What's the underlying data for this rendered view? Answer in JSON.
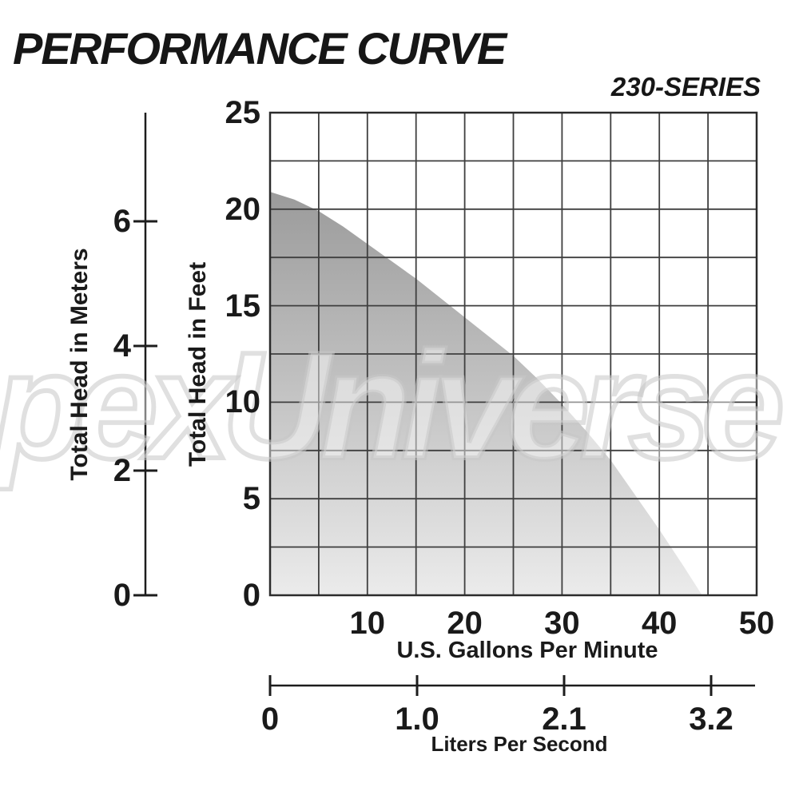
{
  "title": "PERFORMANCE CURVE",
  "series_label": "230-SERIES",
  "watermark": "pexUniverse",
  "colors": {
    "text": "#1a1a1a",
    "grid": "#3f3f3f",
    "border": "#2b2b2b",
    "axis": "#1d1d1d",
    "fill_top": "#9b9b9b",
    "fill_bottom": "#ebebeb",
    "watermark_stroke": "#c6c6c6"
  },
  "chart_data": {
    "type": "area",
    "title": "PERFORMANCE CURVE",
    "series_name": "230-SERIES",
    "grid": true,
    "x_axis": {
      "label": "U.S. Gallons Per Minute",
      "range": [
        0,
        50
      ],
      "tick_step": 10,
      "gridline_step": 5,
      "ticks": [
        10,
        20,
        30,
        40,
        50
      ]
    },
    "x_axis_secondary": {
      "label": "Liters Per Second",
      "ticks": [
        "0",
        "1.0",
        "2.1",
        "3.2"
      ]
    },
    "y_axis": {
      "label": "Total Head in Feet",
      "range": [
        0,
        25
      ],
      "tick_step": 5,
      "gridline_step": 2.5,
      "ticks": [
        25,
        20,
        15,
        10,
        5,
        0
      ]
    },
    "y_axis_secondary": {
      "label": "Total Head in Meters",
      "range": [
        0,
        7.7
      ],
      "ticks": [
        6,
        4,
        2,
        0
      ]
    },
    "curve": {
      "name": "pump performance curve (head vs flow)",
      "units": [
        "US GPM",
        "feet of head"
      ],
      "points": [
        [
          0,
          20.9
        ],
        [
          2.5,
          20.5
        ],
        [
          5,
          19.9
        ],
        [
          7.5,
          19.1
        ],
        [
          10,
          18.2
        ],
        [
          12.5,
          17.3
        ],
        [
          15,
          16.4
        ],
        [
          17.5,
          15.4
        ],
        [
          20,
          14.4
        ],
        [
          22.5,
          13.4
        ],
        [
          25,
          12.4
        ],
        [
          27.5,
          11.2
        ],
        [
          30,
          9.9
        ],
        [
          32.5,
          8.5
        ],
        [
          35,
          7.0
        ],
        [
          37.5,
          5.2
        ],
        [
          40,
          3.4
        ],
        [
          42.5,
          1.5
        ],
        [
          44.4,
          0
        ]
      ],
      "shutoff_head_ft": 20.9,
      "max_flow_gpm": 44.4
    },
    "fill_gradient": {
      "top": "#9b9b9b",
      "bottom": "#ebebeb"
    },
    "legend": "none"
  }
}
